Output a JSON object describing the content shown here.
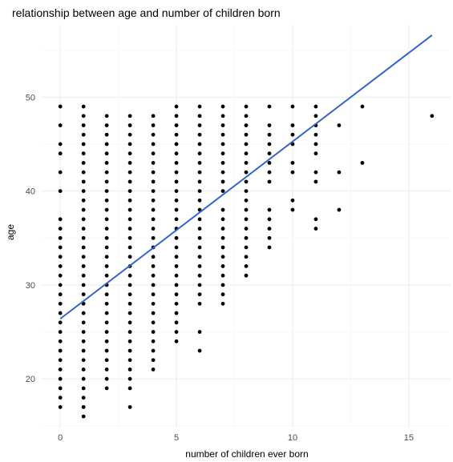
{
  "chart_data": {
    "type": "scatter",
    "title": "relationship between age and number of children born",
    "xlabel": "number of children ever born",
    "ylabel": "age",
    "xlim": [
      -0.8,
      16.8
    ],
    "ylim": [
      14.9,
      57.7
    ],
    "x_ticks": [
      0,
      5,
      10,
      15
    ],
    "y_ticks": [
      20,
      30,
      40,
      50
    ],
    "grid": true,
    "point_color": "#000000",
    "trend_line": {
      "color": "#3366cc",
      "x": [
        0,
        16
      ],
      "y": [
        26.4,
        56.6
      ]
    },
    "columns": [
      {
        "x": 0,
        "ages": [
          17,
          18,
          19,
          20,
          21,
          22,
          23,
          24,
          25,
          26,
          27,
          28,
          29,
          30,
          31,
          32,
          33,
          34,
          35,
          36,
          37,
          40,
          42,
          44,
          45,
          47,
          49
        ]
      },
      {
        "x": 1,
        "ages": [
          16,
          17,
          18,
          19,
          20,
          21,
          22,
          23,
          24,
          25,
          26,
          27,
          28,
          29,
          30,
          31,
          32,
          33,
          34,
          35,
          36,
          37,
          38,
          39,
          40,
          41,
          42,
          43,
          44,
          45,
          46,
          47,
          48,
          49
        ]
      },
      {
        "x": 2,
        "ages": [
          19,
          20,
          21,
          22,
          23,
          24,
          25,
          26,
          27,
          28,
          29,
          30,
          31,
          32,
          33,
          34,
          35,
          36,
          37,
          38,
          39,
          40,
          41,
          42,
          43,
          44,
          45,
          46,
          47,
          48
        ]
      },
      {
        "x": 3,
        "ages": [
          17,
          19,
          20,
          21,
          22,
          23,
          24,
          25,
          26,
          27,
          28,
          29,
          30,
          31,
          32,
          33,
          34,
          35,
          36,
          37,
          38,
          39,
          40,
          41,
          42,
          43,
          44,
          45,
          46,
          47,
          48
        ]
      },
      {
        "x": 4,
        "ages": [
          21,
          22,
          23,
          24,
          25,
          26,
          27,
          28,
          29,
          30,
          31,
          32,
          33,
          34,
          35,
          36,
          37,
          38,
          39,
          40,
          41,
          42,
          43,
          44,
          45,
          46,
          47,
          48
        ]
      },
      {
        "x": 5,
        "ages": [
          24,
          25,
          26,
          27,
          28,
          29,
          30,
          31,
          32,
          33,
          34,
          35,
          36,
          37,
          38,
          39,
          40,
          41,
          42,
          43,
          44,
          45,
          46,
          47,
          48,
          49
        ]
      },
      {
        "x": 6,
        "ages": [
          23,
          25,
          28,
          29,
          30,
          31,
          32,
          33,
          34,
          35,
          36,
          37,
          38,
          39,
          40,
          41,
          42,
          43,
          44,
          45,
          46,
          47,
          48,
          49
        ]
      },
      {
        "x": 7,
        "ages": [
          28,
          29,
          30,
          31,
          32,
          33,
          34,
          35,
          36,
          37,
          38,
          40,
          41,
          42,
          43,
          44,
          45,
          46,
          47,
          48,
          49
        ]
      },
      {
        "x": 8,
        "ages": [
          31,
          32,
          33,
          34,
          35,
          36,
          37,
          38,
          39,
          40,
          41,
          42,
          43,
          44,
          45,
          46,
          47,
          48,
          49
        ]
      },
      {
        "x": 9,
        "ages": [
          34,
          35,
          36,
          37,
          38,
          41,
          42,
          43,
          44,
          45,
          46,
          47,
          49
        ]
      },
      {
        "x": 10,
        "ages": [
          38,
          39,
          42,
          43,
          45,
          46,
          47,
          49
        ]
      },
      {
        "x": 11,
        "ages": [
          36,
          37,
          41,
          42,
          44,
          45,
          46,
          47,
          48,
          49
        ]
      },
      {
        "x": 12,
        "ages": [
          38,
          42,
          47
        ]
      },
      {
        "x": 13,
        "ages": [
          43,
          49
        ]
      },
      {
        "x": 16,
        "ages": [
          48
        ]
      }
    ]
  }
}
